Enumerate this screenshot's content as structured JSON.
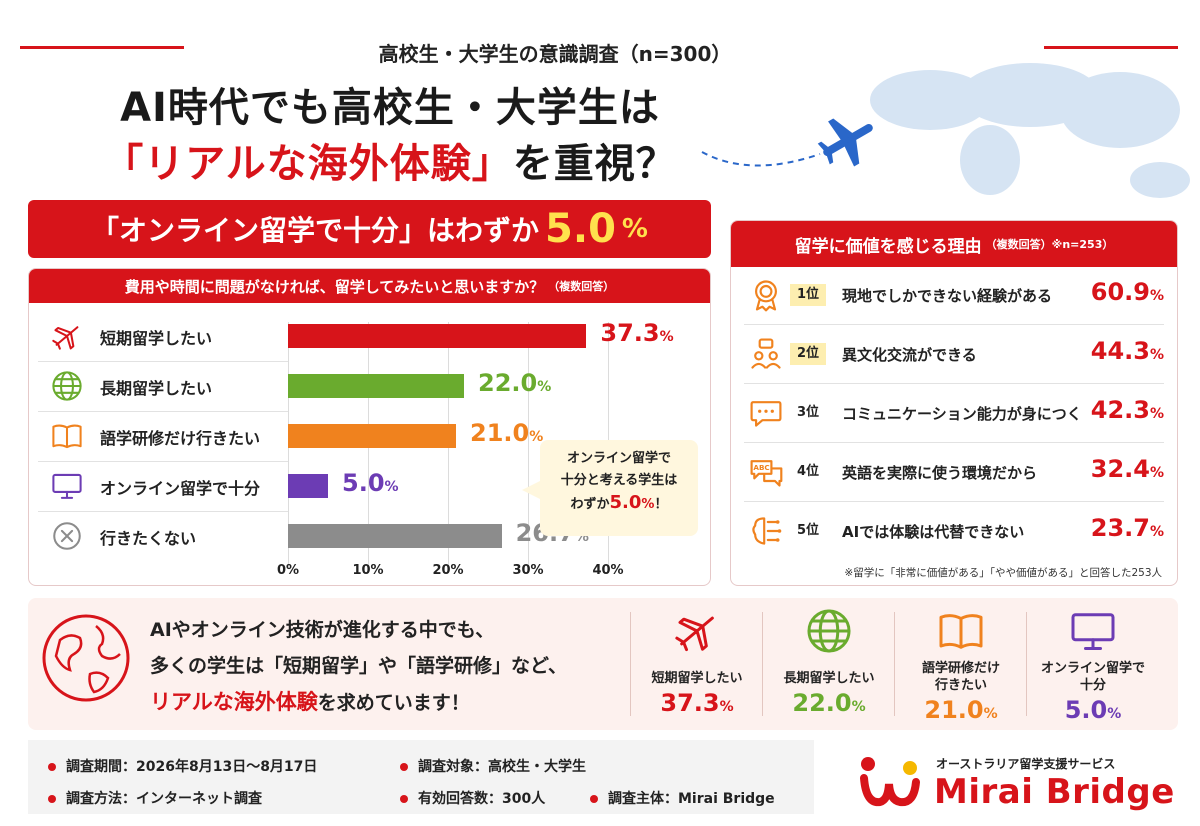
{
  "header": {
    "survey_title": "高校生・大学生の意識調査（n=300）",
    "title_line1": "AI時代でも高校生・大学生は",
    "title_line2_red": "「リアルな海外体験」",
    "title_line2_rest": "を重視？"
  },
  "banner": {
    "text": "「オンライン留学で十分」はわずか",
    "value": "5.0",
    "unit": "%"
  },
  "chart_data": {
    "type": "bar",
    "title": "費用や時間に問題がなければ、留学してみたいと思いますか？",
    "title_note": "（複数回答）",
    "orientation": "horizontal",
    "categories": [
      "短期留学したい",
      "長期留学したい",
      "語学研修だけ行きたい",
      "オンライン留学で十分",
      "行きたくない"
    ],
    "values": [
      37.3,
      22.0,
      21.0,
      5.0,
      26.7
    ],
    "value_labels": [
      "37.3",
      "22.0",
      "21.0",
      "5.0",
      "26.7"
    ],
    "unit": "%",
    "colors": [
      "#d7141a",
      "#6aab2e",
      "#f0821e",
      "#6c3cb4",
      "#8c8c8c"
    ],
    "icons": [
      "airplane-icon",
      "globe-icon",
      "book-icon",
      "monitor-icon",
      "cross-circle-icon"
    ],
    "xlim": [
      0,
      40
    ],
    "ticks": [
      "0%",
      "10%",
      "20%",
      "30%",
      "40%"
    ],
    "grid": true,
    "legend": "none"
  },
  "bubble": {
    "line1": "オンライン留学で",
    "line2": "十分と考える学生は",
    "line3_pre": "わずか",
    "line3_value": "5.0",
    "line3_unit": "%",
    "line3_post": "！"
  },
  "reasons": {
    "title": "留学に価値を感じる理由",
    "note": "（複数回答）※n=253）",
    "items": [
      {
        "rank": "1位",
        "label": "現地でしかできない経験がある",
        "value": "60.9",
        "unit": "%",
        "icon": "medal-icon"
      },
      {
        "rank": "2位",
        "label": "異文化交流ができる",
        "value": "44.3",
        "unit": "%",
        "icon": "people-icon"
      },
      {
        "rank": "3位",
        "label": "コミュニケーション能力が身につく",
        "value": "42.3",
        "unit": "%",
        "icon": "speech-bubble-icon"
      },
      {
        "rank": "4位",
        "label": "英語を実際に使う環境だから",
        "value": "32.4",
        "unit": "%",
        "icon": "abc-bubble-icon"
      },
      {
        "rank": "5位",
        "label": "AIでは体験は代替できない",
        "value": "23.7",
        "unit": "%",
        "icon": "brain-circuit-icon"
      }
    ],
    "footnote": "※留学に「非常に価値がある」「やや価値がある」と回答した253人"
  },
  "summary": {
    "line1": "AIやオンライン技術が進化する中でも、",
    "line2": "多くの学生は「短期留学」や「語学研修」など、",
    "line3_red": "リアルな海外体験",
    "line3_rest": "を求めています！",
    "stats": [
      {
        "label1": "短期留学したい",
        "label2": "",
        "value": "37.3",
        "unit": "%",
        "color": "#d7141a",
        "icon": "airplane-icon"
      },
      {
        "label1": "長期留学したい",
        "label2": "",
        "value": "22.0",
        "unit": "%",
        "color": "#6aab2e",
        "icon": "globe-icon"
      },
      {
        "label1": "語学研修だけ",
        "label2": "行きたい",
        "value": "21.0",
        "unit": "%",
        "color": "#f0821e",
        "icon": "book-icon"
      },
      {
        "label1": "オンライン留学で",
        "label2": "十分",
        "value": "5.0",
        "unit": "%",
        "color": "#6c3cb4",
        "icon": "monitor-icon"
      }
    ]
  },
  "footer": {
    "period": "調査期間：2026年8月13日〜8月17日",
    "target": "調査対象：高校生・大学生",
    "method": "調査方法：インターネット調査",
    "responses": "有効回答数：300人",
    "sponsor": "調査主体：Mirai Bridge"
  },
  "logo": {
    "sub": "オーストラリア留学支援サービス",
    "name": "Mirai Bridge"
  }
}
